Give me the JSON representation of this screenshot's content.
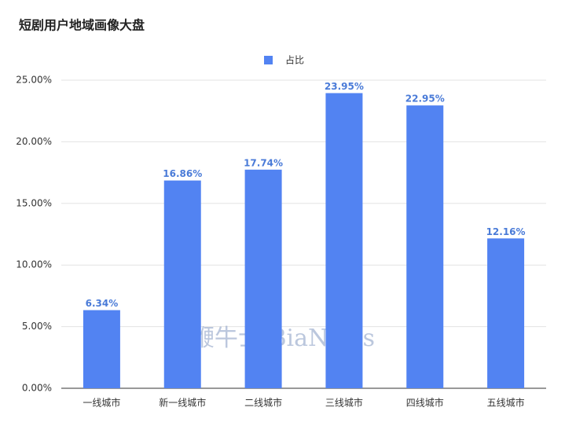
{
  "chart_data": {
    "type": "bar",
    "title": "短剧用户地域画像大盘",
    "categories": [
      "一线城市",
      "新一线城市",
      "二线城市",
      "三线城市",
      "四线城市",
      "五线城市"
    ],
    "series": [
      {
        "name": "占比",
        "color": "#5283f2",
        "values": [
          6.34,
          16.86,
          17.74,
          23.95,
          22.95,
          12.16
        ],
        "value_labels": [
          "6.34%",
          "16.86%",
          "17.74%",
          "23.95%",
          "22.95%",
          "12.16%"
        ]
      }
    ],
    "ylim": [
      0,
      25
    ],
    "yticks": [
      {
        "value": 0,
        "label": "0.00%"
      },
      {
        "value": 5,
        "label": "5.00%"
      },
      {
        "value": 10,
        "label": "10.00%"
      },
      {
        "value": 15,
        "label": "15.00%"
      },
      {
        "value": 20,
        "label": "20.00%"
      },
      {
        "value": 25,
        "label": "25.00%"
      }
    ],
    "grid": true,
    "legend": "top",
    "annotation": "鞭牛士 BiaNews"
  }
}
